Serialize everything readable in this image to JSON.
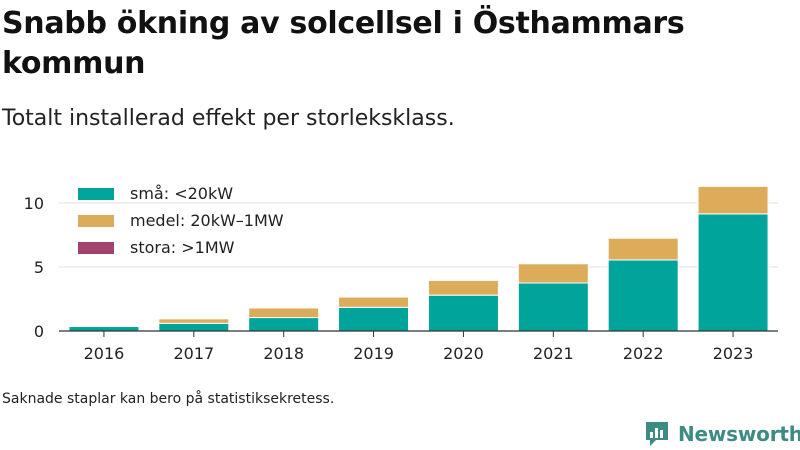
{
  "header": {
    "title": "Snabb ökning av solcellsel i Östhammars kommun",
    "subtitle": "Totalt installerad effekt per storleksklass."
  },
  "footer": {
    "note": "Saknade staplar kan bero på statistiksekretess.",
    "brand": "Newsworthy"
  },
  "icons": {
    "brand_logo": "newsworthy-logo-icon"
  },
  "chart_data": {
    "type": "bar",
    "stacked": true,
    "categories": [
      "2016",
      "2017",
      "2018",
      "2019",
      "2020",
      "2021",
      "2022",
      "2023"
    ],
    "series": [
      {
        "name": "små: <20kW",
        "color": "#00a49a",
        "values": [
          0.35,
          0.6,
          1.05,
          1.85,
          2.8,
          3.75,
          5.55,
          9.15
        ]
      },
      {
        "name": "medel: 20kW–1MW",
        "color": "#dcac5a",
        "values": [
          0,
          0.35,
          0.75,
          0.8,
          1.15,
          1.5,
          1.7,
          2.15
        ]
      },
      {
        "name": "stora: >1MW",
        "color": "#a0436f",
        "values": [
          0,
          0,
          0,
          0,
          0,
          0,
          0,
          0
        ]
      }
    ],
    "ylim": [
      0,
      12
    ],
    "yticks": [
      0,
      5,
      10
    ],
    "grid": true,
    "legend_position": "top-left"
  }
}
